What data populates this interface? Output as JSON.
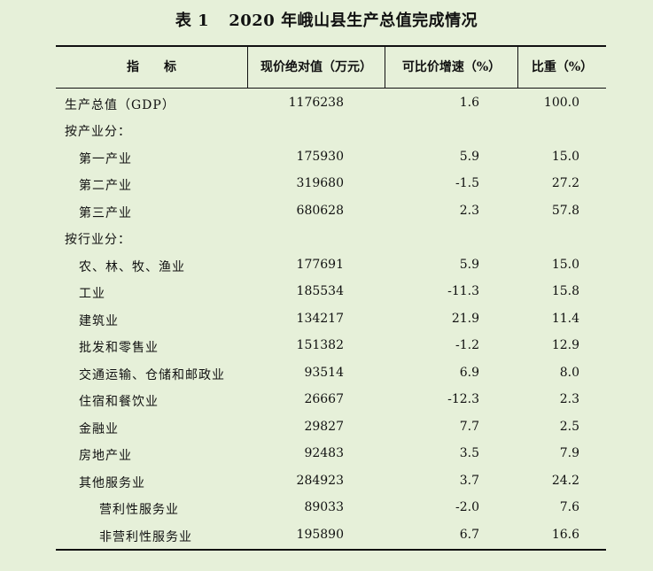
{
  "title": {
    "label": "表 1",
    "text": "2020 年峨山县生产总值完成情况"
  },
  "headers": {
    "indicator": "指　　标",
    "value": "现价绝对值（万元）",
    "growth": "可比价增速（%）",
    "share": "比重（%）"
  },
  "rows": [
    {
      "label": "生产总值（GDP）",
      "value": "1176238",
      "growth": "1.6",
      "share": "100.0"
    },
    {
      "label": "按产业分：",
      "value": "",
      "growth": "",
      "share": ""
    },
    {
      "label": "第一产业",
      "value": "175930",
      "growth": "5.9",
      "share": "15.0"
    },
    {
      "label": "第二产业",
      "value": "319680",
      "growth": "-1.5",
      "share": "27.2"
    },
    {
      "label": "第三产业",
      "value": "680628",
      "growth": "2.3",
      "share": "57.8"
    },
    {
      "label": "按行业分：",
      "value": "",
      "growth": "",
      "share": ""
    },
    {
      "label": "农、林、牧、渔业",
      "value": "177691",
      "growth": "5.9",
      "share": "15.0"
    },
    {
      "label": "工业",
      "value": "185534",
      "growth": "-11.3",
      "share": "15.8"
    },
    {
      "label": "建筑业",
      "value": "134217",
      "growth": "21.9",
      "share": "11.4"
    },
    {
      "label": "批发和零售业",
      "value": "151382",
      "growth": "-1.2",
      "share": "12.9"
    },
    {
      "label": "交通运输、仓储和邮政业",
      "value": "93514",
      "growth": "6.9",
      "share": "8.0"
    },
    {
      "label": "住宿和餐饮业",
      "value": "26667",
      "growth": "-12.3",
      "share": "2.3"
    },
    {
      "label": "金融业",
      "value": "29827",
      "growth": "7.7",
      "share": "2.5"
    },
    {
      "label": "房地产业",
      "value": "92483",
      "growth": "3.5",
      "share": "7.9"
    },
    {
      "label": "其他服务业",
      "value": "284923",
      "growth": "3.7",
      "share": "24.2"
    },
    {
      "label": "营利性服务业",
      "value": "89033",
      "growth": "-2.0",
      "share": "7.6"
    },
    {
      "label": "非营利性服务业",
      "value": "195890",
      "growth": "6.7",
      "share": "16.6"
    }
  ]
}
